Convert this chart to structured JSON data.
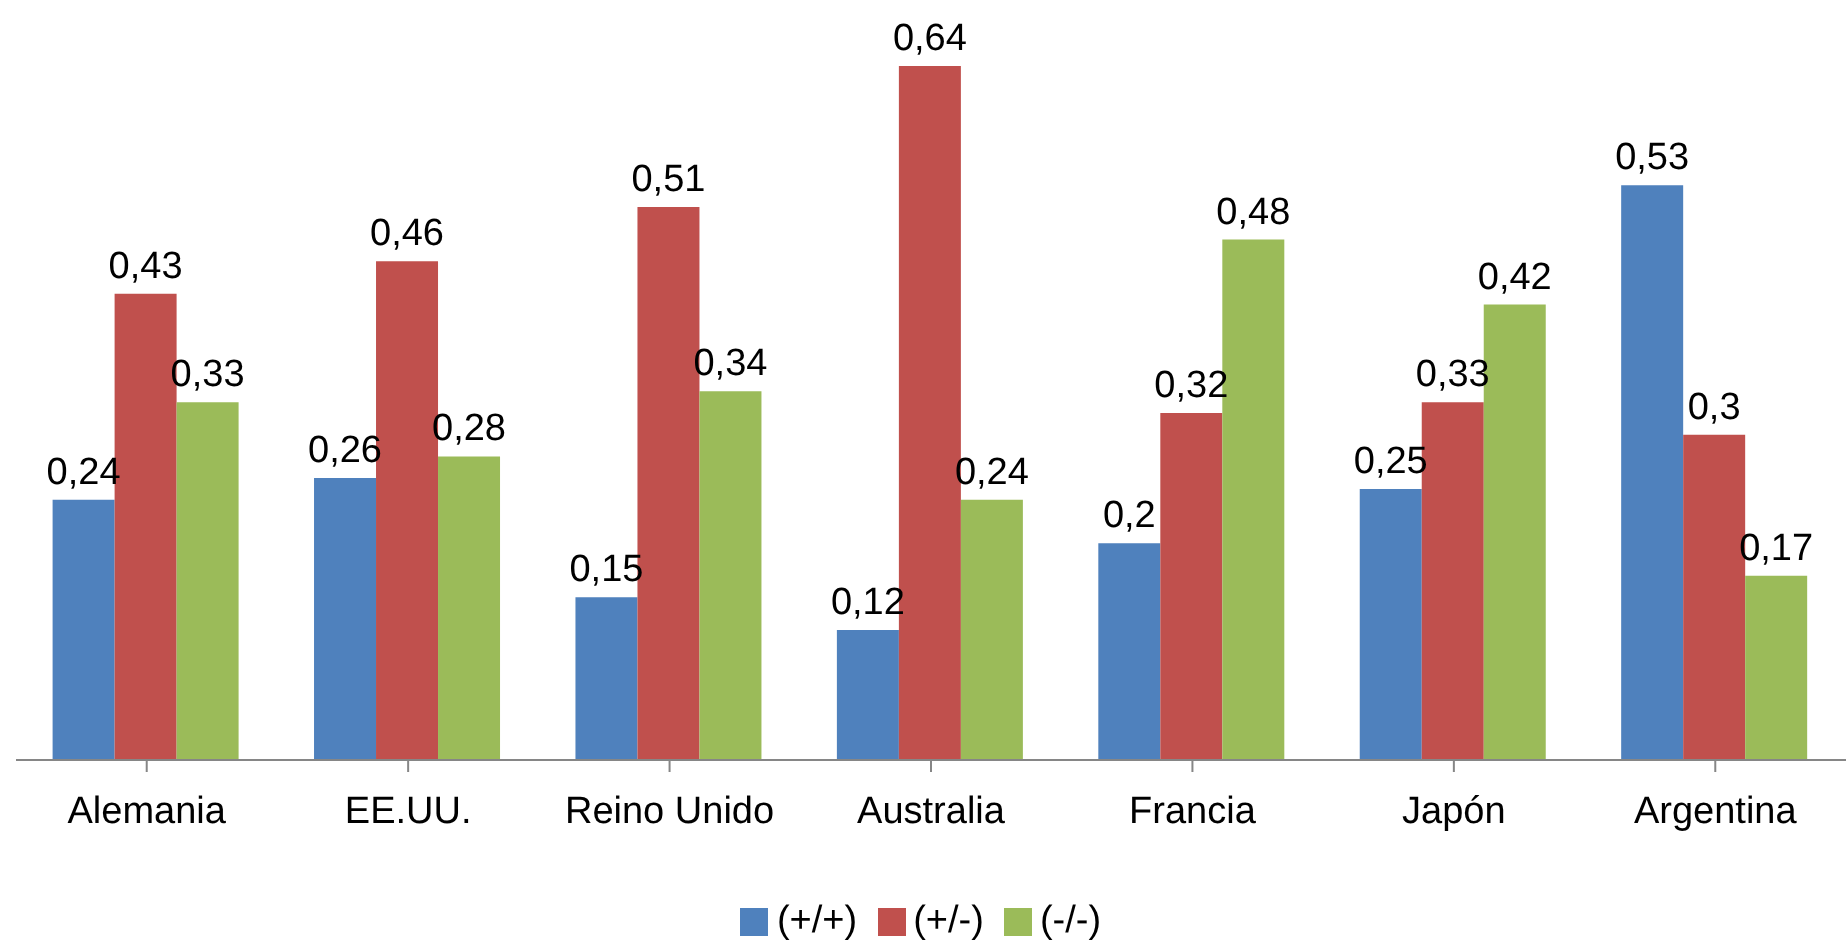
{
  "chart_data": {
    "type": "bar",
    "categories": [
      "Alemania",
      "EE.UU.",
      "Reino Unido",
      "Australia",
      "Francia",
      "Japón",
      "Argentina"
    ],
    "series": [
      {
        "name": "(+/+)",
        "color": "#4f81bd",
        "values": [
          0.24,
          0.26,
          0.15,
          0.12,
          0.2,
          0.25,
          0.53
        ],
        "value_labels": [
          "0,24",
          "0,26",
          "0,15",
          "0,12",
          "0,2",
          "0,25",
          "0,53"
        ]
      },
      {
        "name": "(+/-)",
        "color": "#c0504d",
        "values": [
          0.43,
          0.46,
          0.51,
          0.64,
          0.32,
          0.33,
          0.3
        ],
        "value_labels": [
          "0,43",
          "0,46",
          "0,51",
          "0,64",
          "0,32",
          "0,33",
          "0,3"
        ]
      },
      {
        "name": "(-/-)",
        "color": "#9bbb59",
        "values": [
          0.33,
          0.28,
          0.34,
          0.24,
          0.48,
          0.42,
          0.17
        ],
        "value_labels": [
          "0,33",
          "0,28",
          "0,34",
          "0,24",
          "0,48",
          "0,42",
          "0,17"
        ]
      }
    ],
    "legend": "bottom",
    "grid": false
  }
}
